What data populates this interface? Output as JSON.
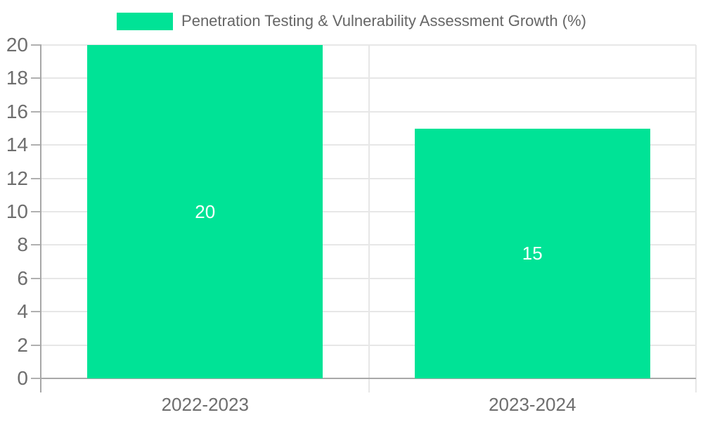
{
  "legend": {
    "label": "Penetration Testing & Vulnerability Assessment Growth (%)"
  },
  "chart_data": {
    "type": "bar",
    "title": "Penetration Testing & Vulnerability Assessment Growth (%)",
    "categories": [
      "2022-2023",
      "2023-2024"
    ],
    "series": [
      {
        "name": "Penetration Testing & Vulnerability Assessment Growth (%)",
        "values": [
          20,
          15
        ]
      }
    ],
    "data_labels": [
      "20",
      "15"
    ],
    "xlabel": "",
    "ylabel": "",
    "ylim": [
      0,
      20
    ],
    "ytick_step": 2,
    "ytick_labels": [
      "0",
      "2",
      "4",
      "6",
      "8",
      "10",
      "12",
      "14",
      "16",
      "18",
      "20"
    ],
    "grid": true,
    "legend_position": "top",
    "colors": {
      "series": "#00E396",
      "data_label": "#FFFFFF",
      "axis_label": "#6E6E6E",
      "legend_label": "#666666",
      "gridline": "#E7E7E7",
      "axis_line": "#A8A8A8",
      "tick": "#B0B0B0",
      "background": "#FFFFFF"
    }
  }
}
